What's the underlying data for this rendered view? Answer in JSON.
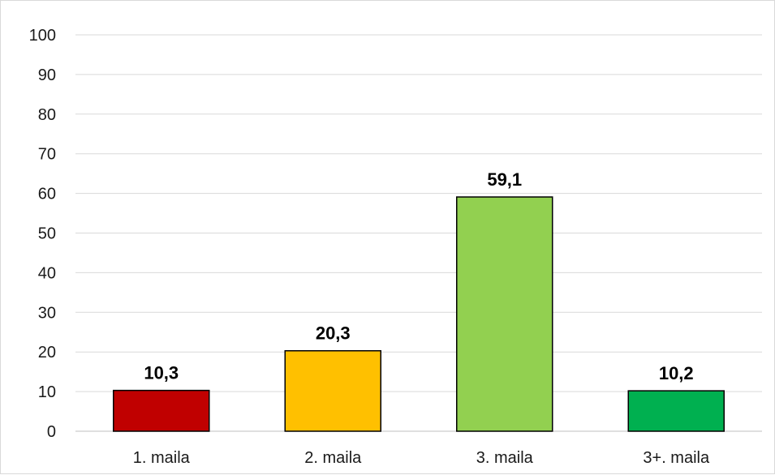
{
  "chart_data": {
    "type": "bar",
    "title": "",
    "xlabel": "",
    "ylabel": "",
    "categories": [
      "1. maila",
      "2. maila",
      "3. maila",
      "3+. maila"
    ],
    "values": [
      10.3,
      20.3,
      59.1,
      10.2
    ],
    "value_labels": [
      "10,3",
      "20,3",
      "59,1",
      "10,2"
    ],
    "colors": [
      "#c00000",
      "#ffc000",
      "#92d050",
      "#00b050"
    ],
    "ylim": [
      0,
      100
    ],
    "yticks": [
      0,
      10,
      20,
      30,
      40,
      50,
      60,
      70,
      80,
      90,
      100
    ],
    "grid": true,
    "legend": "none"
  }
}
